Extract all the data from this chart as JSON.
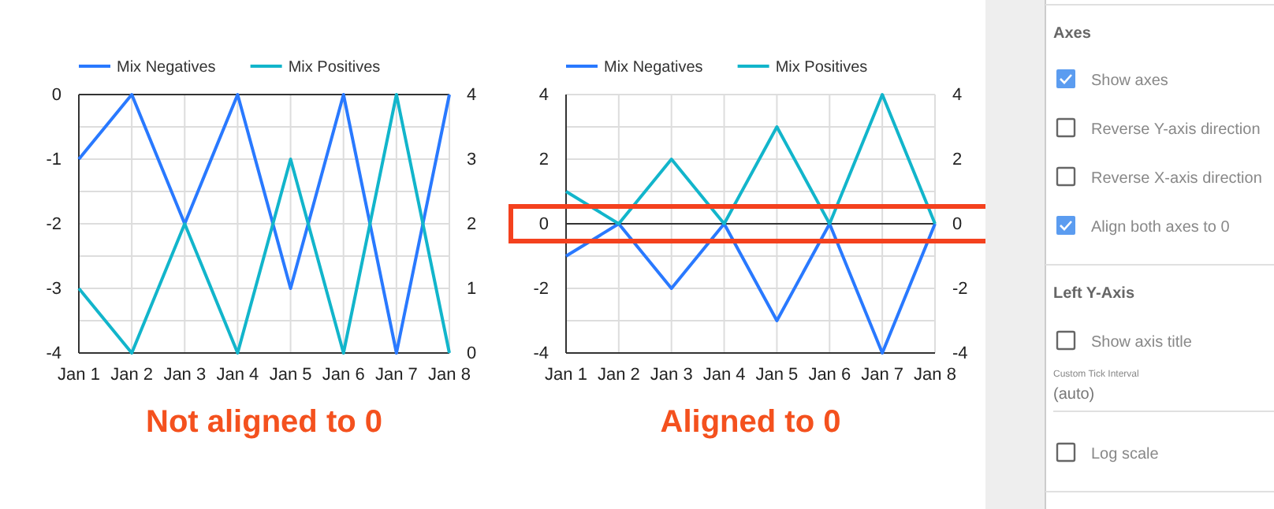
{
  "chart_data": [
    {
      "type": "line",
      "categories": [
        "Jan 1",
        "Jan 2",
        "Jan 3",
        "Jan 4",
        "Jan 5",
        "Jan 6",
        "Jan 7",
        "Jan 8"
      ],
      "series": [
        {
          "name": "Mix Negatives",
          "color": "#2979ff",
          "values": [
            -1,
            0,
            -2,
            0,
            -3,
            0,
            -4,
            0
          ]
        },
        {
          "name": "Mix Positives",
          "color": "#12b5cb",
          "axis": "y2",
          "values": [
            1,
            0,
            2,
            0,
            3,
            0,
            4,
            0
          ]
        }
      ],
      "ylim": [
        -4,
        0
      ],
      "yticks": [
        -4,
        {
          "value": -3.5,
          "label": null
        },
        -3,
        {
          "value": -2.5,
          "label": null
        },
        -2,
        {
          "value": -1.5,
          "label": null
        },
        -1,
        {
          "value": -0.5,
          "label": null
        },
        0
      ],
      "y2lim": [
        0,
        4
      ],
      "y2ticks": [
        0,
        1,
        2,
        3,
        4
      ],
      "grid": true,
      "legend": "top",
      "annotations": [
        "Not aligned to 0"
      ]
    },
    {
      "type": "line",
      "categories": [
        "Jan 1",
        "Jan 2",
        "Jan 3",
        "Jan 4",
        "Jan 5",
        "Jan 6",
        "Jan 7",
        "Jan 8"
      ],
      "series": [
        {
          "name": "Mix Negatives",
          "color": "#2979ff",
          "values": [
            -1,
            0,
            -2,
            0,
            -3,
            0,
            -4,
            0
          ]
        },
        {
          "name": "Mix Positives",
          "color": "#12b5cb",
          "axis": "y2",
          "values": [
            1,
            0,
            2,
            0,
            3,
            0,
            4,
            0
          ]
        }
      ],
      "ylim": [
        -4,
        4
      ],
      "yticks": [
        -4,
        {
          "value": -3,
          "label": null
        },
        -2,
        {
          "value": -1,
          "label": null
        },
        0,
        {
          "value": 1,
          "label": null
        },
        2,
        {
          "value": 3,
          "label": null
        },
        4
      ],
      "y2lim": [
        -4,
        4
      ],
      "y2ticks": [
        -4,
        -2,
        0,
        2,
        4
      ],
      "grid": true,
      "legend": "top",
      "annotations": [
        "Aligned to 0"
      ]
    },
    {
      "type": "other",
      "annotations": [
        "Axes",
        "Show axes",
        "Reverse Y-axis direction",
        "Reverse X-axis direction",
        "Align both axes to 0",
        "Left Y-Axis",
        "Show axis title",
        "Custom Tick Interval",
        "(auto)",
        "Log scale"
      ]
    }
  ]
}
